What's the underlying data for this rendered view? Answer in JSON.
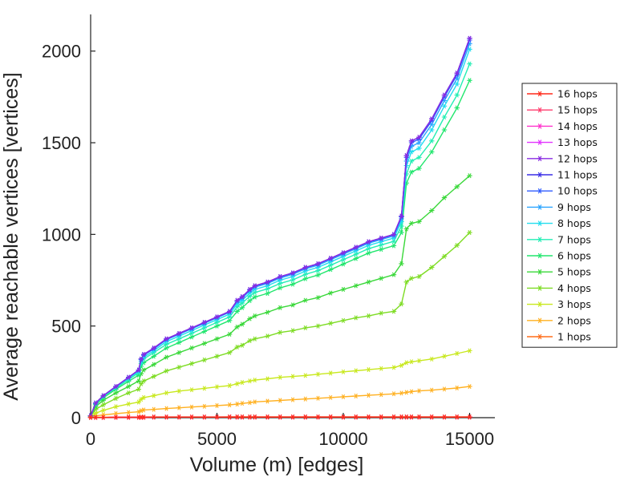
{
  "chart_data": {
    "type": "line",
    "xlabel": "Volume (m) [edges]",
    "ylabel": "Average reachable vertices [vertices]",
    "xlim": [
      0,
      16000
    ],
    "ylim": [
      0,
      2200
    ],
    "xticks": [
      0,
      5000,
      10000,
      15000
    ],
    "yticks": [
      0,
      500,
      1000,
      1500,
      2000
    ],
    "xtick_labels": [
      "0",
      "5000",
      "10000",
      "15000"
    ],
    "ytick_labels": [
      "0",
      "500",
      "1000",
      "1500",
      "2000"
    ],
    "grid": false,
    "legend_position": "right",
    "marker": "asterisk",
    "x": [
      0,
      200,
      500,
      1000,
      1500,
      1900,
      2000,
      2100,
      2500,
      3000,
      3500,
      4000,
      4500,
      5000,
      5500,
      5800,
      6000,
      6300,
      6500,
      7000,
      7500,
      8000,
      8500,
      9000,
      9500,
      10000,
      10500,
      11000,
      11500,
      12000,
      12300,
      12500,
      12700,
      13000,
      13500,
      14000,
      14500,
      15000
    ],
    "series": [
      {
        "name": "16 hops",
        "color": "#ff2a1a",
        "values": [
          1,
          1,
          1,
          2,
          2,
          2,
          2,
          2,
          3,
          3,
          3,
          3,
          3,
          3,
          3,
          3,
          3,
          3,
          3,
          3,
          3,
          3,
          3,
          3,
          3,
          3,
          3,
          3,
          3,
          3,
          3,
          3,
          3,
          3,
          3,
          3,
          3,
          3
        ]
      },
      {
        "name": "15 hops",
        "color": "#ff3d6e",
        "values": [
          1,
          1,
          1,
          2,
          2,
          2,
          2,
          2,
          3,
          3,
          3,
          3,
          3,
          3,
          3,
          3,
          3,
          3,
          3,
          3,
          3,
          3,
          3,
          3,
          3,
          3,
          3,
          3,
          3,
          3,
          3,
          3,
          3,
          3,
          3,
          3,
          3,
          3
        ]
      },
      {
        "name": "14 hops",
        "color": "#ff33cc",
        "values": [
          1,
          1,
          1,
          2,
          2,
          2,
          2,
          2,
          3,
          3,
          3,
          3,
          3,
          3,
          3,
          3,
          3,
          3,
          3,
          3,
          3,
          3,
          3,
          3,
          3,
          3,
          3,
          3,
          3,
          3,
          3,
          3,
          3,
          3,
          3,
          3,
          3,
          3
        ]
      },
      {
        "name": "13 hops",
        "color": "#e233ff",
        "values": [
          1,
          1,
          1,
          2,
          2,
          2,
          2,
          2,
          3,
          3,
          3,
          3,
          3,
          3,
          3,
          3,
          3,
          3,
          3,
          3,
          3,
          3,
          3,
          3,
          3,
          3,
          3,
          3,
          3,
          3,
          3,
          3,
          3,
          3,
          3,
          3,
          3,
          3
        ]
      },
      {
        "name": "12 hops",
        "color": "#8a2be2",
        "values": [
          10,
          80,
          120,
          170,
          220,
          260,
          320,
          345,
          380,
          430,
          460,
          490,
          520,
          550,
          580,
          640,
          660,
          700,
          720,
          740,
          770,
          790,
          820,
          840,
          870,
          900,
          930,
          960,
          980,
          1000,
          1100,
          1430,
          1510,
          1530,
          1630,
          1760,
          1880,
          2070
        ]
      },
      {
        "name": "11 hops",
        "color": "#3a2ee6",
        "values": [
          10,
          80,
          120,
          170,
          220,
          260,
          320,
          345,
          380,
          430,
          460,
          490,
          520,
          550,
          580,
          640,
          660,
          700,
          720,
          740,
          770,
          790,
          820,
          840,
          870,
          900,
          930,
          960,
          980,
          1000,
          1100,
          1430,
          1510,
          1530,
          1630,
          1760,
          1880,
          2070
        ]
      },
      {
        "name": "10 hops",
        "color": "#2f5cff",
        "values": [
          10,
          80,
          120,
          170,
          220,
          260,
          320,
          343,
          378,
          428,
          458,
          488,
          518,
          548,
          578,
          638,
          658,
          698,
          718,
          738,
          768,
          788,
          818,
          838,
          868,
          898,
          928,
          958,
          978,
          998,
          1095,
          1420,
          1500,
          1520,
          1620,
          1750,
          1870,
          2060
        ]
      },
      {
        "name": "9 hops",
        "color": "#2aa4ff",
        "values": [
          10,
          80,
          120,
          170,
          220,
          258,
          315,
          340,
          375,
          425,
          455,
          485,
          515,
          545,
          575,
          632,
          652,
          692,
          712,
          732,
          762,
          782,
          812,
          832,
          862,
          892,
          922,
          952,
          972,
          992,
          1085,
          1400,
          1480,
          1500,
          1600,
          1730,
          1850,
          2040
        ]
      },
      {
        "name": "8 hops",
        "color": "#22ddee",
        "values": [
          10,
          78,
          118,
          168,
          215,
          252,
          305,
          330,
          365,
          415,
          445,
          475,
          505,
          535,
          565,
          620,
          640,
          680,
          700,
          720,
          750,
          770,
          800,
          820,
          850,
          880,
          910,
          940,
          960,
          980,
          1070,
          1375,
          1450,
          1470,
          1570,
          1700,
          1820,
          2010
        ]
      },
      {
        "name": "7 hops",
        "color": "#22eeb4",
        "values": [
          10,
          75,
          115,
          162,
          208,
          245,
          295,
          320,
          355,
          400,
          430,
          460,
          490,
          520,
          550,
          605,
          625,
          663,
          683,
          703,
          732,
          752,
          782,
          802,
          832,
          862,
          892,
          922,
          942,
          962,
          1045,
          1330,
          1400,
          1420,
          1510,
          1640,
          1760,
          1930
        ]
      },
      {
        "name": "6 hops",
        "color": "#22e66e",
        "values": [
          10,
          70,
          108,
          155,
          198,
          232,
          280,
          300,
          335,
          380,
          410,
          440,
          470,
          500,
          530,
          580,
          600,
          638,
          658,
          678,
          708,
          728,
          758,
          778,
          808,
          838,
          868,
          898,
          918,
          938,
          1010,
          1280,
          1340,
          1360,
          1450,
          1570,
          1690,
          1840
        ]
      },
      {
        "name": "5 hops",
        "color": "#3ad83a",
        "values": [
          10,
          60,
          95,
          135,
          170,
          200,
          240,
          260,
          290,
          330,
          355,
          380,
          405,
          430,
          455,
          495,
          510,
          540,
          555,
          575,
          600,
          615,
          640,
          655,
          680,
          700,
          720,
          740,
          760,
          780,
          840,
          1030,
          1060,
          1070,
          1130,
          1200,
          1260,
          1320
        ]
      },
      {
        "name": "4 hops",
        "color": "#7edc24",
        "values": [
          8,
          45,
          70,
          105,
          135,
          155,
          185,
          200,
          225,
          255,
          275,
          295,
          315,
          335,
          355,
          385,
          395,
          420,
          430,
          445,
          465,
          475,
          490,
          500,
          515,
          530,
          545,
          555,
          570,
          580,
          620,
          740,
          760,
          770,
          820,
          880,
          940,
          1010
        ]
      },
      {
        "name": "3 hops",
        "color": "#c8e81e",
        "values": [
          5,
          25,
          40,
          60,
          75,
          85,
          100,
          110,
          120,
          135,
          145,
          152,
          160,
          168,
          175,
          185,
          192,
          200,
          205,
          212,
          220,
          225,
          230,
          237,
          243,
          250,
          256,
          262,
          268,
          274,
          285,
          300,
          305,
          310,
          320,
          335,
          350,
          365
        ]
      },
      {
        "name": "2 hops",
        "color": "#ffb020",
        "values": [
          2,
          10,
          15,
          22,
          28,
          32,
          38,
          42,
          45,
          50,
          54,
          58,
          62,
          66,
          70,
          74,
          78,
          82,
          86,
          90,
          94,
          98,
          102,
          106,
          110,
          114,
          118,
          122,
          126,
          130,
          134,
          138,
          142,
          146,
          150,
          156,
          162,
          170
        ]
      },
      {
        "name": "1 hops",
        "color": "#ff6e1a",
        "values": [
          1,
          2,
          2,
          3,
          3,
          3,
          3,
          4,
          4,
          4,
          4,
          4,
          4,
          4,
          5,
          5,
          5,
          5,
          5,
          5,
          5,
          5,
          5,
          5,
          5,
          5,
          5,
          5,
          5,
          5,
          5,
          5,
          5,
          5,
          5,
          5,
          5,
          5
        ]
      }
    ]
  }
}
